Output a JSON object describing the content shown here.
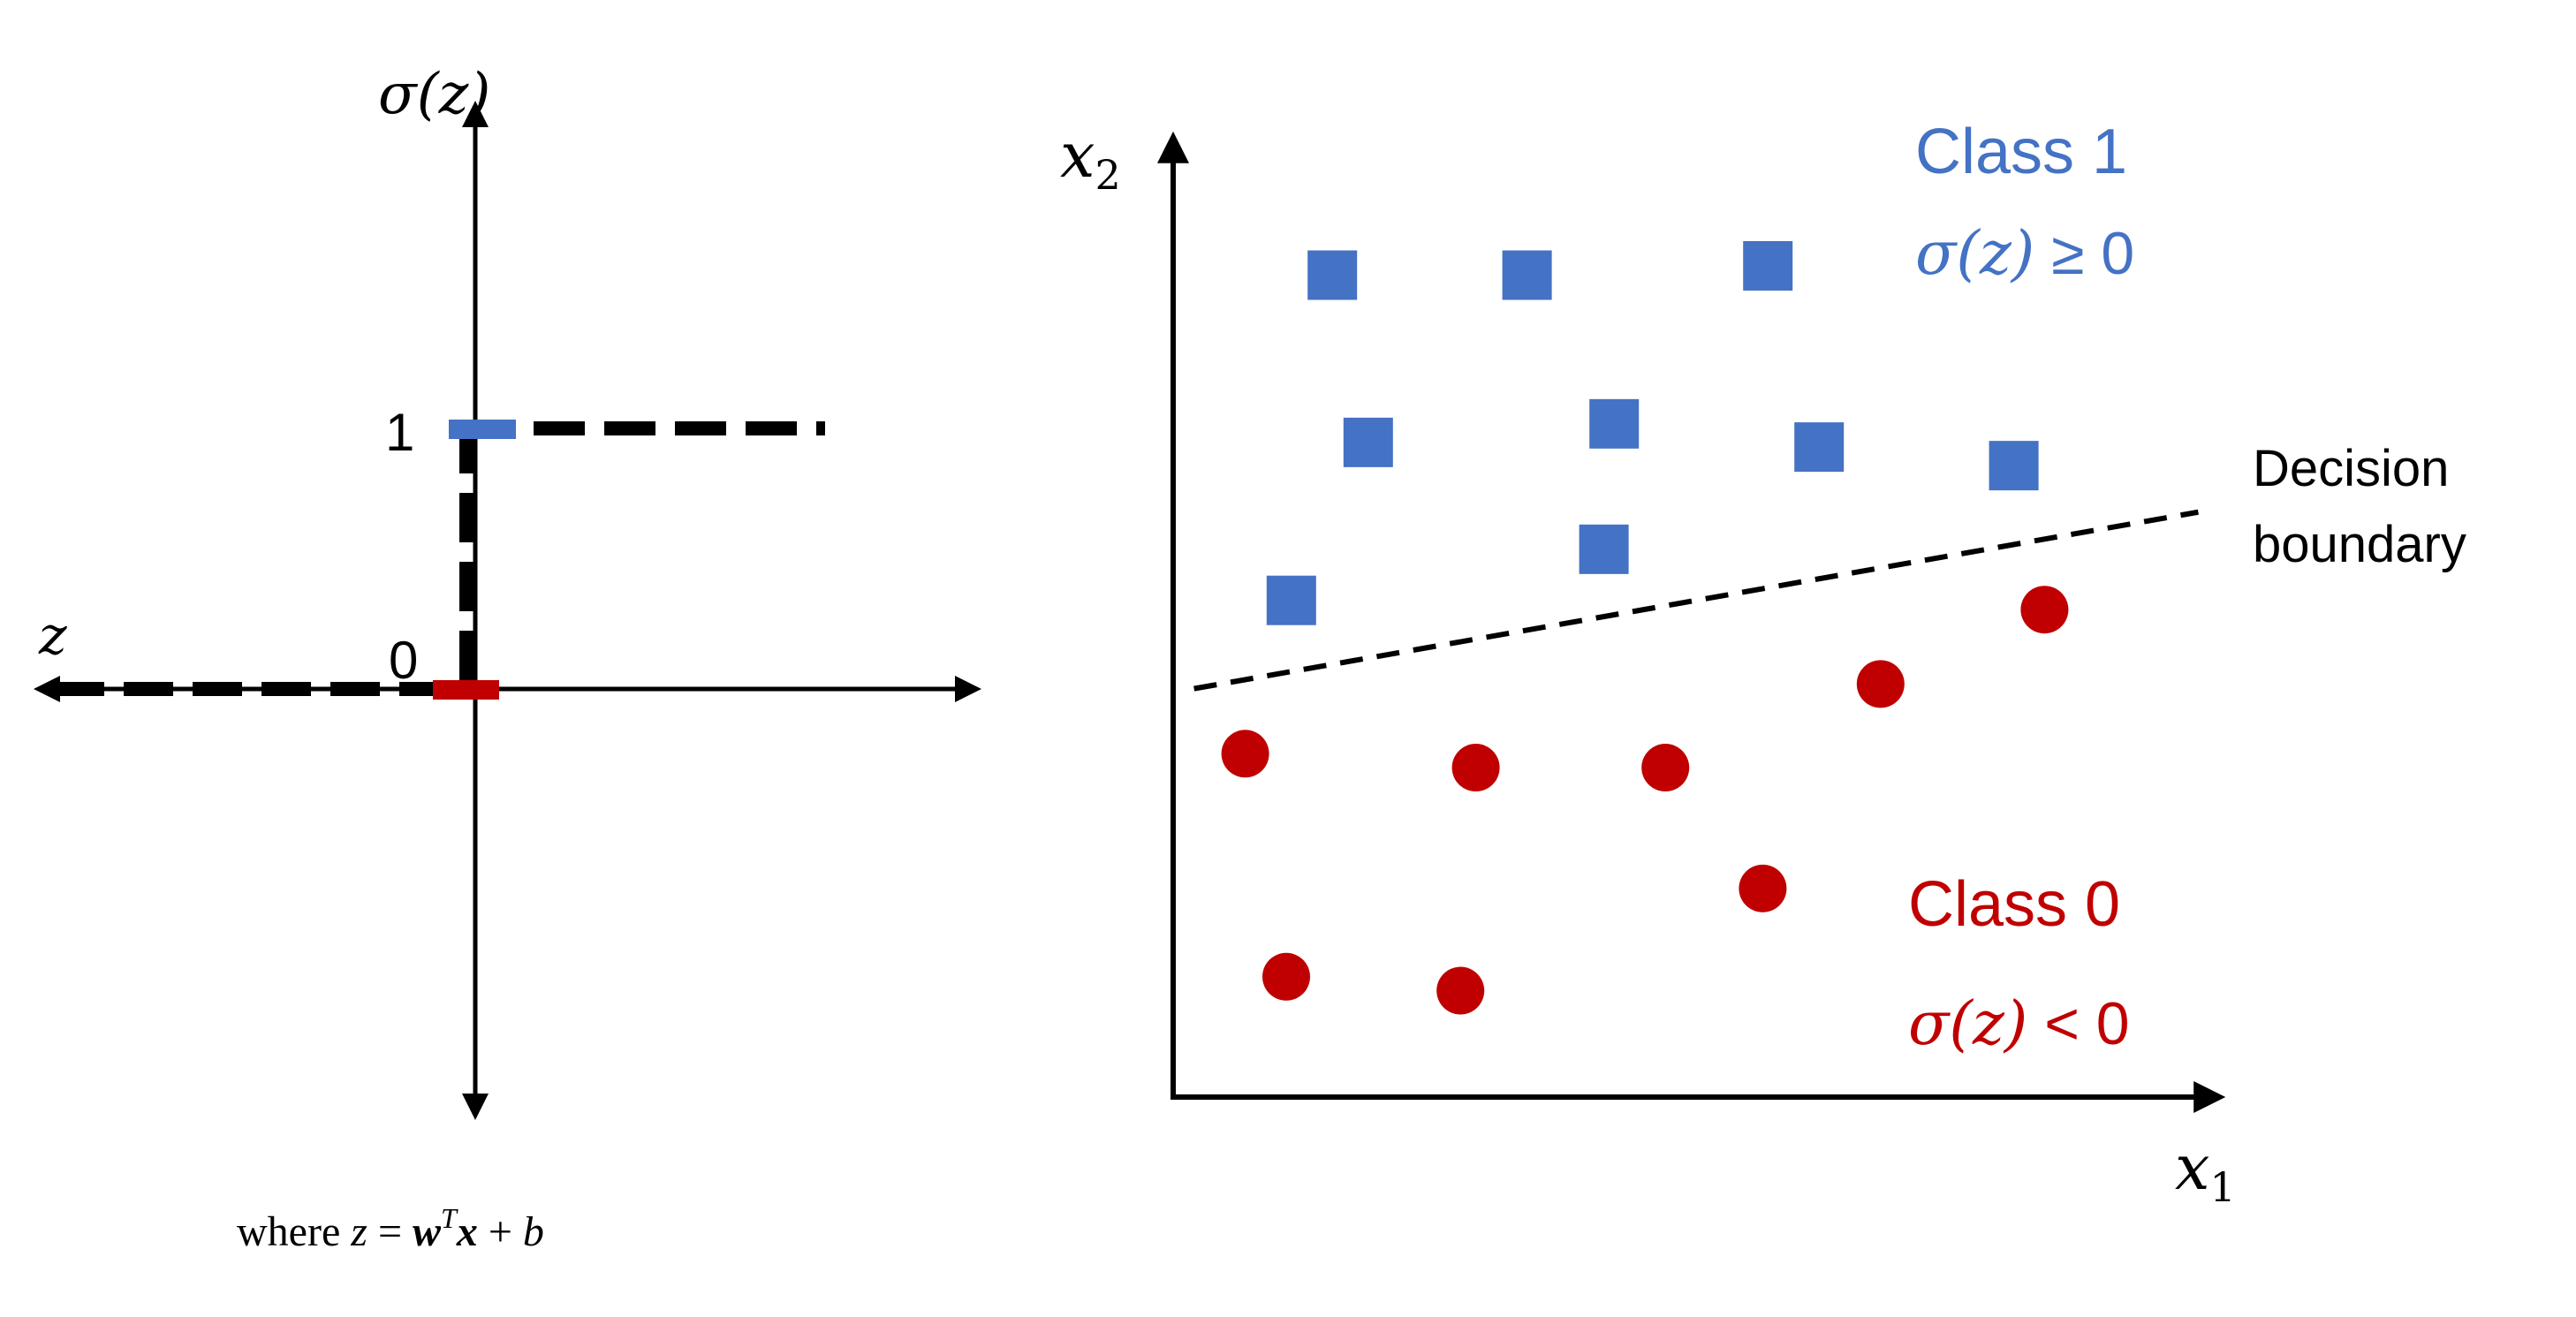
{
  "left_panel": {
    "y_axis_label": "σ(z)",
    "x_axis_label": "z",
    "tick_one": "1",
    "tick_zero": "0",
    "formula": {
      "prefix": "where ",
      "z": "z",
      "eq": " = ",
      "w": "w",
      "sup": "T",
      "x": "x",
      "plus": " + ",
      "b": "b"
    },
    "colors": {
      "axis": "#000000",
      "step": "#000000",
      "marker_one": "#4472C4",
      "marker_zero": "#C00000"
    }
  },
  "right_panel": {
    "y_axis_label": {
      "var": "x",
      "sub": "2"
    },
    "x_axis_label": {
      "var": "x",
      "sub": "1"
    },
    "class1": {
      "title": "Class 1",
      "cond_math": "σ(z)",
      "cond_rest": " ≥ 0",
      "color": "#4472C4"
    },
    "class0": {
      "title": "Class 0",
      "cond_math": "σ(z)",
      "cond_rest": " < 0",
      "color": "#C00000"
    },
    "boundary": {
      "line1": "Decision",
      "line2": "boundary"
    }
  },
  "chart_data": {
    "type": "scatter",
    "series": [
      {
        "name": "Class 1",
        "marker": "square",
        "color": "#4472C4",
        "points": [
          [
            1.45,
            8.75
          ],
          [
            3.35,
            8.75
          ],
          [
            5.7,
            8.85
          ],
          [
            1.8,
            6.95
          ],
          [
            4.2,
            7.15
          ],
          [
            6.2,
            6.9
          ],
          [
            8.1,
            6.7
          ],
          [
            4.1,
            5.8
          ],
          [
            1.05,
            5.25
          ]
        ]
      },
      {
        "name": "Class 0",
        "marker": "circle",
        "color": "#C00000",
        "points": [
          [
            0.6,
            3.6
          ],
          [
            2.85,
            3.45
          ],
          [
            4.7,
            3.45
          ],
          [
            6.8,
            4.35
          ],
          [
            8.4,
            5.15
          ],
          [
            5.65,
            2.15
          ],
          [
            1.0,
            1.2
          ],
          [
            2.7,
            1.05
          ]
        ]
      }
    ],
    "decision_boundary": {
      "from": [
        0.1,
        4.3
      ],
      "to": [
        9.9,
        6.2
      ]
    },
    "xlim": [
      0,
      10
    ],
    "ylim": [
      0,
      10
    ]
  }
}
